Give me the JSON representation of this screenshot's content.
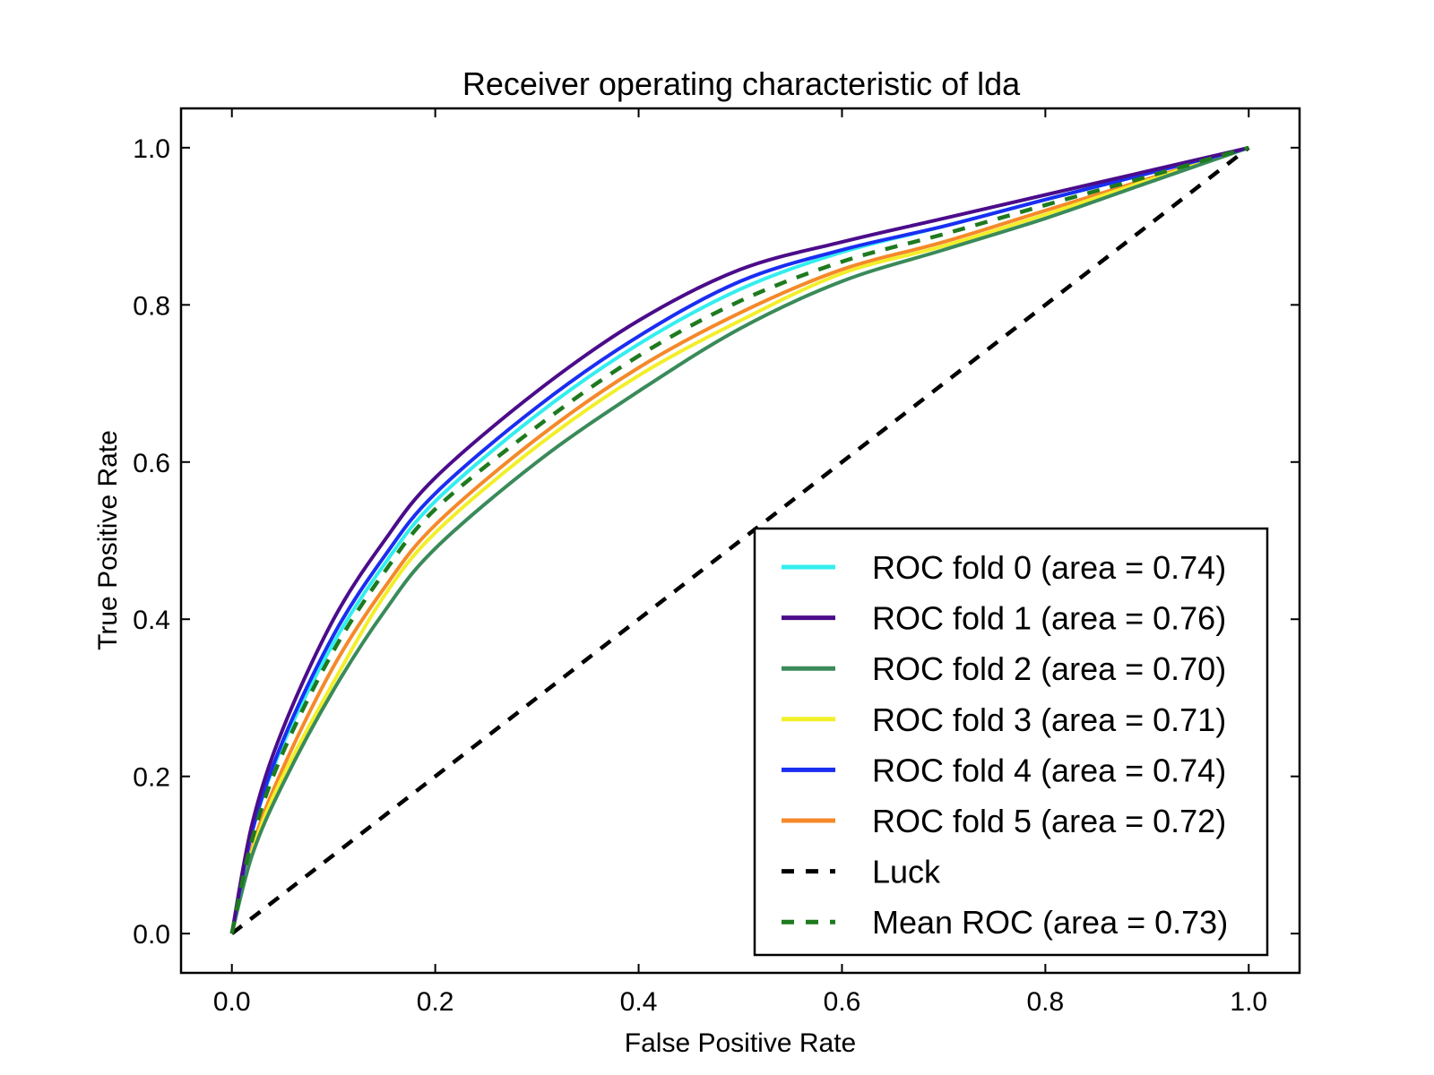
{
  "chart_data": {
    "type": "line",
    "title": "Receiver operating characteristic of lda",
    "xlabel": "False Positive Rate",
    "ylabel": "True Positive Rate",
    "xlim": [
      -0.05,
      1.05
    ],
    "ylim": [
      -0.05,
      1.05
    ],
    "xticks": [
      {
        "value": 0.0,
        "label": "0.0"
      },
      {
        "value": 0.2,
        "label": "0.2"
      },
      {
        "value": 0.4,
        "label": "0.4"
      },
      {
        "value": 0.6,
        "label": "0.6"
      },
      {
        "value": 0.8,
        "label": "0.8"
      },
      {
        "value": 1.0,
        "label": "1.0"
      }
    ],
    "yticks": [
      {
        "value": 0.0,
        "label": "0.0"
      },
      {
        "value": 0.2,
        "label": "0.2"
      },
      {
        "value": 0.4,
        "label": "0.4"
      },
      {
        "value": 0.6,
        "label": "0.6"
      },
      {
        "value": 0.8,
        "label": "0.8"
      },
      {
        "value": 1.0,
        "label": "1.0"
      }
    ],
    "grid": false,
    "legend_position": "lower-right",
    "x": [
      0.0,
      0.02,
      0.05,
      0.1,
      0.15,
      0.2,
      0.3,
      0.4,
      0.5,
      0.6,
      0.7,
      0.8,
      0.9,
      1.0
    ],
    "series": [
      {
        "name": "ROC fold 0 (area = 0.74)",
        "color": "#33eeee",
        "style": "solid",
        "values": [
          0.0,
          0.13,
          0.24,
          0.37,
          0.47,
          0.55,
          0.66,
          0.75,
          0.82,
          0.867,
          0.9,
          0.934,
          0.967,
          1.0
        ]
      },
      {
        "name": "ROC fold 1 (area = 0.76)",
        "color": "#4b0c8a",
        "style": "solid",
        "values": [
          0.0,
          0.14,
          0.26,
          0.4,
          0.5,
          0.58,
          0.69,
          0.78,
          0.845,
          0.88,
          0.91,
          0.94,
          0.97,
          1.0
        ]
      },
      {
        "name": "ROC fold 2 (area = 0.70)",
        "color": "#3a8a5a",
        "style": "solid",
        "values": [
          0.0,
          0.1,
          0.19,
          0.31,
          0.41,
          0.49,
          0.6,
          0.69,
          0.77,
          0.83,
          0.87,
          0.91,
          0.955,
          1.0
        ]
      },
      {
        "name": "ROC fold 3 (area = 0.71)",
        "color": "#f2ef2a",
        "style": "solid",
        "values": [
          0.0,
          0.105,
          0.2,
          0.32,
          0.43,
          0.51,
          0.62,
          0.71,
          0.78,
          0.84,
          0.875,
          0.915,
          0.958,
          1.0
        ]
      },
      {
        "name": "ROC fold 4 (area = 0.74)",
        "color": "#1a2ef2",
        "style": "solid",
        "values": [
          0.0,
          0.13,
          0.245,
          0.38,
          0.48,
          0.56,
          0.67,
          0.76,
          0.83,
          0.87,
          0.9,
          0.934,
          0.967,
          1.0
        ]
      },
      {
        "name": "ROC fold 5 (area = 0.72)",
        "color": "#f5892a",
        "style": "solid",
        "values": [
          0.0,
          0.11,
          0.21,
          0.34,
          0.44,
          0.52,
          0.63,
          0.72,
          0.79,
          0.845,
          0.88,
          0.92,
          0.96,
          1.0
        ]
      },
      {
        "name": "Luck",
        "color": "#000000",
        "style": "dashed",
        "values": [
          0.0,
          0.02,
          0.05,
          0.1,
          0.15,
          0.2,
          0.3,
          0.4,
          0.5,
          0.6,
          0.7,
          0.8,
          0.9,
          1.0
        ]
      },
      {
        "name": "Mean ROC (area = 0.73)",
        "color": "#1e7a1e",
        "style": "dashed",
        "values": [
          0.0,
          0.12,
          0.23,
          0.36,
          0.46,
          0.54,
          0.645,
          0.735,
          0.805,
          0.855,
          0.89,
          0.927,
          0.963,
          1.0
        ]
      }
    ]
  }
}
